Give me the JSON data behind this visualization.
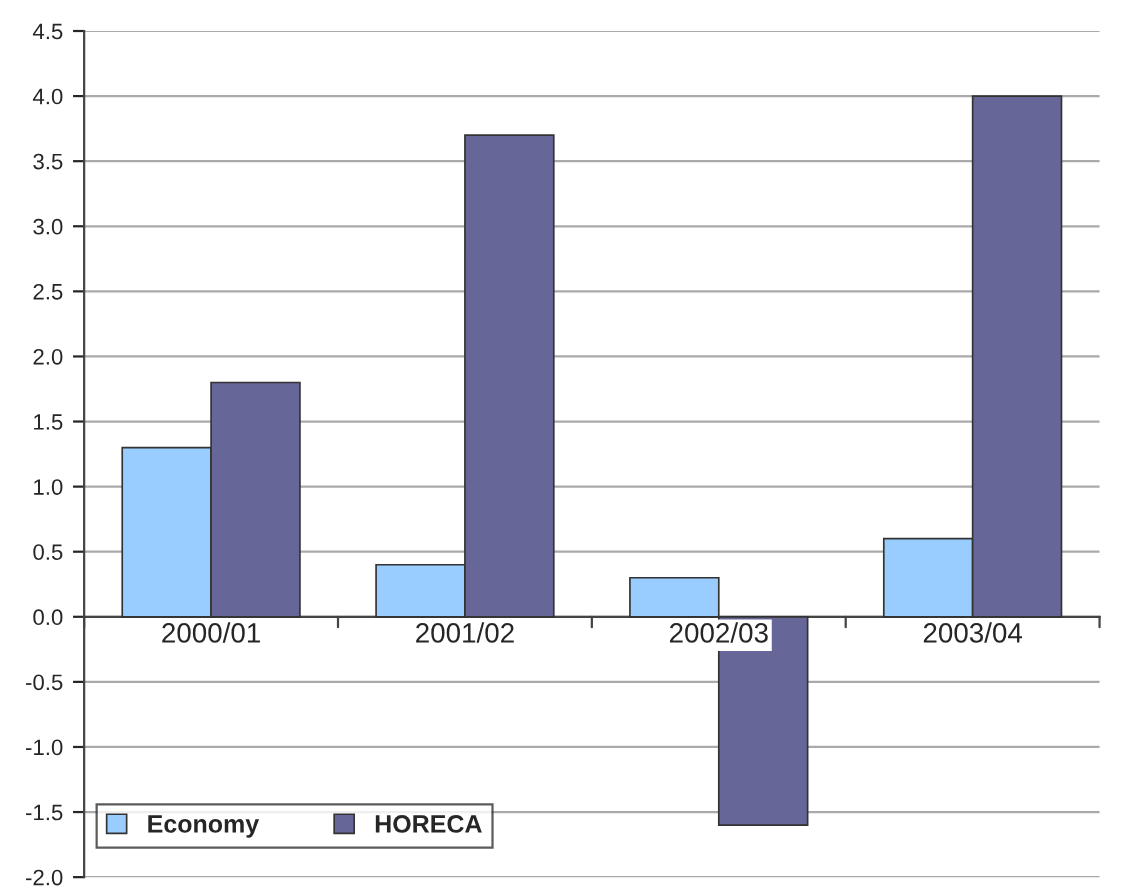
{
  "chart_data": {
    "type": "bar",
    "categories": [
      "2000/01",
      "2001/02",
      "2002/03",
      "2003/04"
    ],
    "series": [
      {
        "name": "Economy",
        "color": "#99ccff",
        "values": [
          1.3,
          0.4,
          0.3,
          0.6
        ]
      },
      {
        "name": "HORECA",
        "color": "#666699",
        "values": [
          1.8,
          3.7,
          -1.6,
          4.0
        ]
      }
    ],
    "ylim": [
      -2.0,
      4.5
    ],
    "yticks": [
      {
        "value": -2.0,
        "label": "-2.0"
      },
      {
        "value": -1.5,
        "label": "-1.5"
      },
      {
        "value": -1.0,
        "label": "-1.0"
      },
      {
        "value": -0.5,
        "label": "-0.5"
      },
      {
        "value": 0,
        "label": "0.0"
      },
      {
        "value": 0.5,
        "label": "0.5"
      },
      {
        "value": 1.0,
        "label": "1.0"
      },
      {
        "value": 1.5,
        "label": "1.5"
      },
      {
        "value": 2.0,
        "label": "2.0"
      },
      {
        "value": 2.5,
        "label": "2.5"
      },
      {
        "value": 3.0,
        "label": "3.0"
      },
      {
        "value": 3.5,
        "label": "3.5"
      },
      {
        "value": 4.0,
        "label": "4.0"
      },
      {
        "value": 4.5,
        "label": "4.5"
      }
    ],
    "grid": "y",
    "legend": "bottom left"
  }
}
